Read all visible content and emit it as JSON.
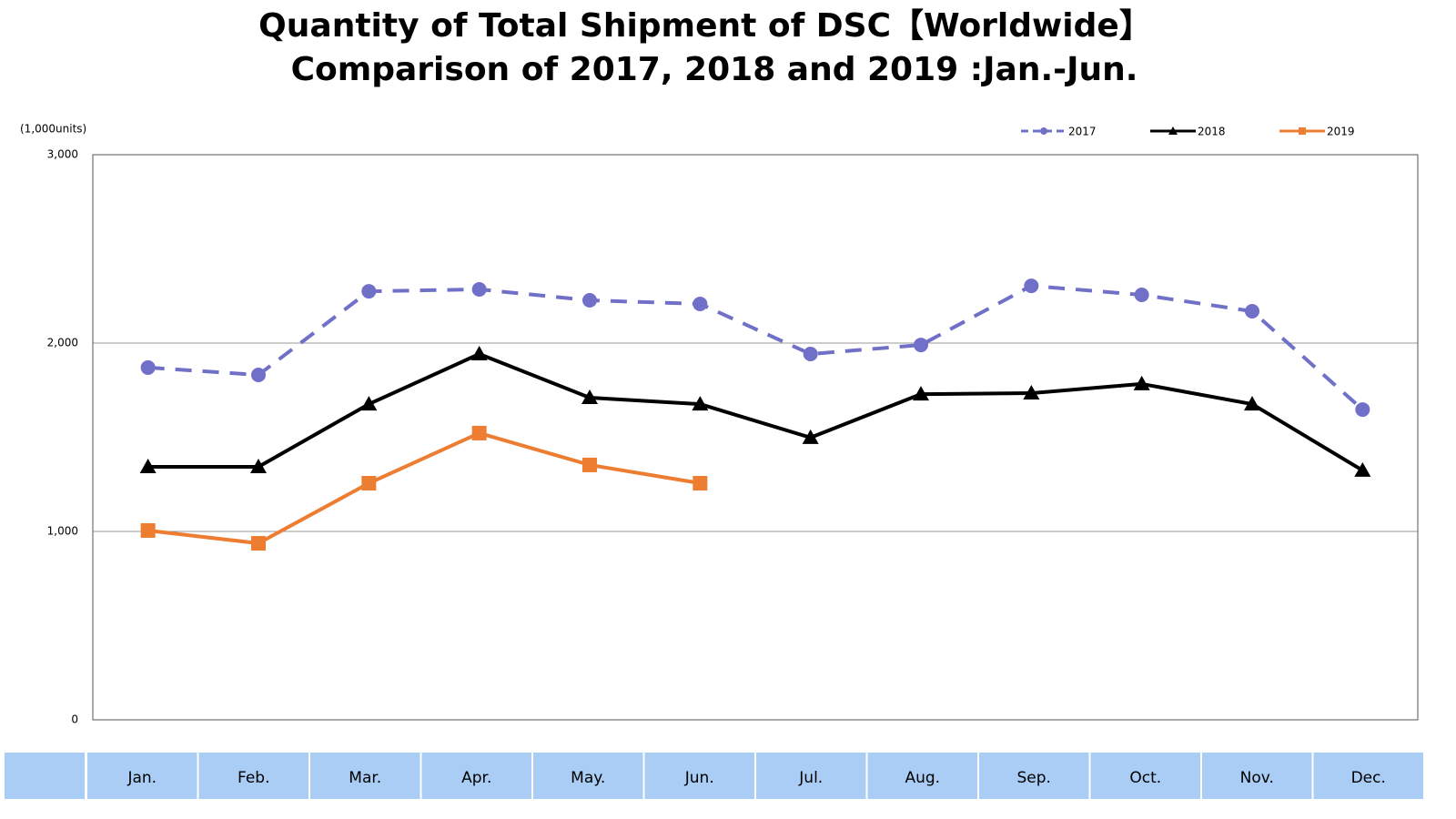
{
  "chart_data": {
    "type": "line",
    "title": "Quantity of Total Shipment of DSC【Worldwide】",
    "subtitle": "Comparison of 2017, 2018 and 2019 :Jan.-Jun.",
    "y_label": "(1,000units)",
    "categories": [
      "Jan.",
      "Feb.",
      "Mar.",
      "Apr.",
      "May.",
      "Jun.",
      "Jul.",
      "Aug.",
      "Sep.",
      "Oct.",
      "Nov.",
      "Dec."
    ],
    "series": [
      {
        "name": "2017",
        "color": "#7070c8",
        "marker": "circle",
        "dashed": true,
        "values": [
          1870,
          1831,
          2275,
          2285,
          2227,
          2208,
          1942,
          1990,
          2304,
          2256,
          2169,
          1647
        ]
      },
      {
        "name": "2018",
        "color": "#000000",
        "marker": "triangle",
        "dashed": false,
        "values": [
          1343,
          1343,
          1676,
          1942,
          1710,
          1676,
          1498,
          1729,
          1734,
          1783,
          1676,
          1324
        ]
      },
      {
        "name": "2019",
        "color": "#ed7d31",
        "marker": "square",
        "dashed": false,
        "values": [
          1005,
          937,
          1256,
          1522,
          1353,
          1256,
          null,
          null,
          null,
          null,
          null,
          null
        ]
      }
    ],
    "ylim": [
      0,
      3000
    ],
    "yticks": [
      0,
      {
        "value": 1000,
        "label": "1,000"
      },
      {
        "value": 2000,
        "label": "2,000"
      },
      {
        "value": 3000,
        "label": "3,000"
      }
    ],
    "grid": true,
    "legend": "top-right"
  }
}
